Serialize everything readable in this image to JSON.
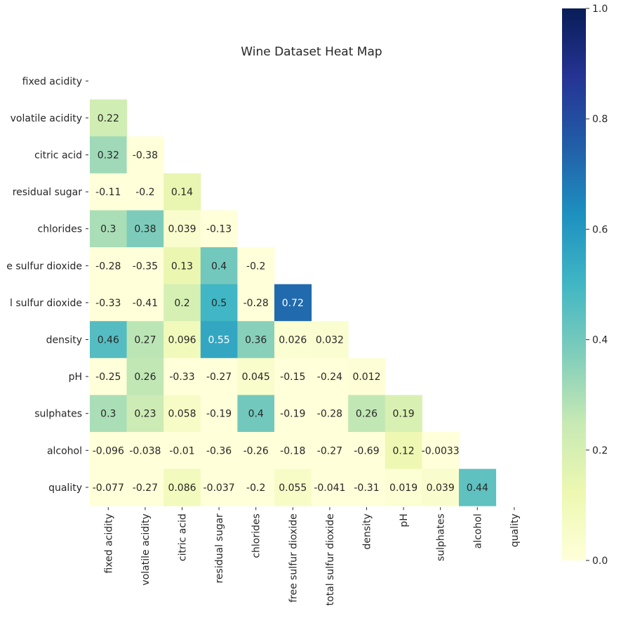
{
  "chart_data": {
    "type": "heatmap",
    "title": "Wine Dataset Heat Map",
    "xlabel": "",
    "ylabel": "",
    "variables": [
      "fixed acidity",
      "volatile acidity",
      "citric acid",
      "residual sugar",
      "chlorides",
      "free sulfur dioxide",
      "total sulfur dioxide",
      "density",
      "pH",
      "sulphates",
      "alcohol",
      "quality"
    ],
    "y_tick_labels": [
      "fixed acidity",
      "volatile acidity",
      "citric acid",
      "residual sugar",
      "chlorides",
      "e sulfur dioxide",
      "l sulfur dioxide",
      "density",
      "pH",
      "sulphates",
      "alcohol",
      "quality"
    ],
    "mask": "upper triangle including diagonal",
    "values": [
      [
        null,
        null,
        null,
        null,
        null,
        null,
        null,
        null,
        null,
        null,
        null,
        null
      ],
      [
        0.22,
        null,
        null,
        null,
        null,
        null,
        null,
        null,
        null,
        null,
        null,
        null
      ],
      [
        0.32,
        -0.38,
        null,
        null,
        null,
        null,
        null,
        null,
        null,
        null,
        null,
        null
      ],
      [
        -0.11,
        -0.2,
        0.14,
        null,
        null,
        null,
        null,
        null,
        null,
        null,
        null,
        null
      ],
      [
        0.3,
        0.38,
        0.039,
        -0.13,
        null,
        null,
        null,
        null,
        null,
        null,
        null,
        null
      ],
      [
        -0.28,
        -0.35,
        0.13,
        0.4,
        -0.2,
        null,
        null,
        null,
        null,
        null,
        null,
        null
      ],
      [
        -0.33,
        -0.41,
        0.2,
        0.5,
        -0.28,
        0.72,
        null,
        null,
        null,
        null,
        null,
        null
      ],
      [
        0.46,
        0.27,
        0.096,
        0.55,
        0.36,
        0.026,
        0.032,
        null,
        null,
        null,
        null,
        null
      ],
      [
        -0.25,
        0.26,
        -0.33,
        -0.27,
        0.045,
        -0.15,
        -0.24,
        0.012,
        null,
        null,
        null,
        null
      ],
      [
        0.3,
        0.23,
        0.058,
        -0.19,
        0.4,
        -0.19,
        -0.28,
        0.26,
        0.19,
        null,
        null,
        null
      ],
      [
        -0.096,
        -0.038,
        -0.01,
        -0.36,
        -0.26,
        -0.18,
        -0.27,
        -0.69,
        0.12,
        -0.0033,
        null,
        null
      ],
      [
        -0.077,
        -0.27,
        0.086,
        -0.037,
        -0.2,
        0.055,
        -0.041,
        -0.31,
        0.019,
        0.039,
        0.44,
        null
      ]
    ],
    "colormap": "YlGnBu",
    "vmin": 0.0,
    "vmax": 1.0,
    "colorbar_ticks": [
      0.0,
      0.2,
      0.4,
      0.6,
      0.8,
      1.0
    ],
    "colorbar_tick_labels": [
      "0.0",
      "0.2",
      "0.4",
      "0.6",
      "0.8",
      "1.0"
    ],
    "colorbar_stops": [
      "#ffffd9",
      "#edf8b1",
      "#c7e9b4",
      "#7fcdbb",
      "#41b6c4",
      "#1d91c0",
      "#225ea8",
      "#253494",
      "#081d58"
    ],
    "annotations": true,
    "grid": false
  }
}
